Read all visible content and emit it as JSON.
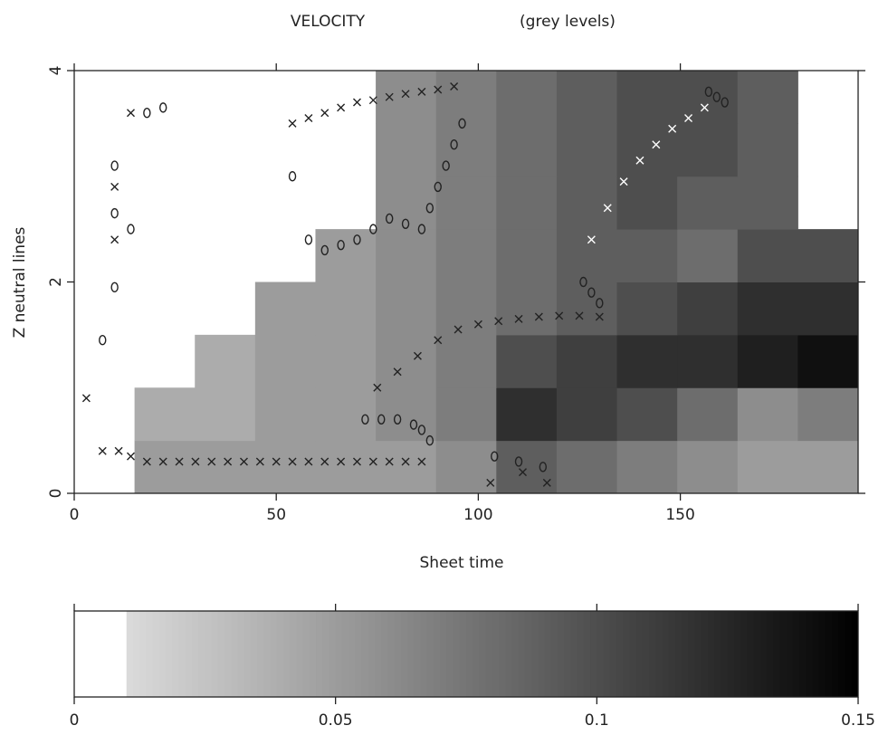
{
  "chart_data": [
    {
      "type": "heatmap-scatter",
      "title": "VELOCITY",
      "subtitle": "(grey levels)",
      "x_label": "Sheet time",
      "y_label": "Z neutral lines",
      "xlim": [
        0,
        194
      ],
      "ylim": [
        0,
        4
      ],
      "xticks": [
        0,
        50,
        100,
        150
      ],
      "yticks": [
        0,
        2,
        4
      ],
      "z": [
        [
          null,
          0.05,
          0.05,
          0.05,
          0.05,
          0.05,
          0.06,
          0.09,
          0.08,
          0.07,
          0.06,
          0.05,
          0.05
        ],
        [
          null,
          0.04,
          0.04,
          0.05,
          0.05,
          0.06,
          0.07,
          0.12,
          0.11,
          0.1,
          0.08,
          0.06,
          0.07
        ],
        [
          null,
          null,
          0.04,
          0.05,
          0.05,
          0.06,
          0.07,
          0.1,
          0.11,
          0.12,
          0.12,
          0.13,
          0.14
        ],
        [
          null,
          null,
          null,
          0.05,
          0.05,
          0.06,
          0.07,
          0.08,
          0.09,
          0.1,
          0.11,
          0.12,
          0.12
        ],
        [
          null,
          null,
          null,
          null,
          0.05,
          0.06,
          0.07,
          0.08,
          0.09,
          0.09,
          0.08,
          0.1,
          0.1
        ],
        [
          null,
          null,
          null,
          null,
          null,
          0.06,
          0.07,
          0.08,
          0.09,
          0.1,
          0.09,
          0.09,
          null
        ],
        [
          null,
          null,
          null,
          null,
          null,
          0.06,
          0.07,
          0.08,
          0.09,
          0.1,
          0.1,
          0.09,
          null
        ],
        [
          null,
          null,
          null,
          null,
          null,
          0.06,
          0.07,
          0.08,
          0.09,
          0.1,
          0.1,
          0.09,
          null
        ]
      ],
      "series": [
        {
          "marker": "x",
          "color": "#222222",
          "x": [
            3,
            7,
            11,
            14,
            18,
            22,
            26,
            30,
            34,
            38,
            42,
            46,
            50,
            54,
            58,
            62,
            66,
            70,
            74,
            78,
            82,
            86,
            10,
            10,
            14,
            54,
            58,
            62,
            66,
            70,
            74,
            78,
            82,
            86,
            90,
            94,
            75,
            80,
            85,
            90,
            95,
            100,
            105,
            110,
            115,
            120,
            125,
            130,
            103,
            111,
            117
          ],
          "values": [
            0.9,
            0.4,
            0.4,
            0.35,
            0.3,
            0.3,
            0.3,
            0.3,
            0.3,
            0.3,
            0.3,
            0.3,
            0.3,
            0.3,
            0.3,
            0.3,
            0.3,
            0.3,
            0.3,
            0.3,
            0.3,
            0.3,
            2.9,
            2.4,
            3.6,
            3.5,
            3.55,
            3.6,
            3.65,
            3.7,
            3.72,
            3.75,
            3.78,
            3.8,
            3.82,
            3.85,
            1.0,
            1.15,
            1.3,
            1.45,
            1.55,
            1.6,
            1.63,
            1.65,
            1.67,
            1.68,
            1.68,
            1.67,
            0.1,
            0.2,
            0.1
          ]
        },
        {
          "marker": "x",
          "color": "#ffffff",
          "x": [
            128,
            132,
            136,
            140,
            144,
            148,
            152,
            156
          ],
          "values": [
            2.4,
            2.7,
            2.95,
            3.15,
            3.3,
            3.45,
            3.55,
            3.65
          ]
        },
        {
          "marker": "o",
          "color": "#222222",
          "x": [
            18,
            22,
            10,
            10,
            14,
            10,
            7,
            54,
            58,
            62,
            66,
            70,
            74,
            78,
            82,
            86,
            88,
            90,
            92,
            94,
            96,
            72,
            76,
            80,
            84,
            86,
            88,
            104,
            110,
            116,
            126,
            128,
            130,
            157,
            159,
            161
          ],
          "values": [
            3.6,
            3.65,
            3.1,
            2.65,
            2.5,
            1.95,
            1.45,
            3.0,
            2.4,
            2.3,
            2.35,
            2.4,
            2.5,
            2.6,
            2.55,
            2.5,
            2.7,
            2.9,
            3.1,
            3.3,
            3.5,
            0.7,
            0.7,
            0.7,
            0.65,
            0.6,
            0.5,
            0.35,
            0.3,
            0.25,
            2.0,
            1.9,
            1.8,
            3.8,
            3.75,
            3.7
          ]
        }
      ]
    },
    {
      "type": "colorbar",
      "xlim": [
        0,
        0.15
      ],
      "xticks": [
        0,
        0.05,
        0.1,
        0.15
      ]
    }
  ]
}
